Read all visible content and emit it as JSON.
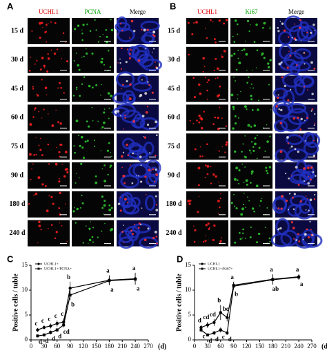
{
  "panel_a": {
    "label": "A",
    "headers": [
      "UCHL1",
      "PCNA",
      "Merge"
    ],
    "rows": [
      "15 d",
      "30 d",
      "45 d",
      "60 d",
      "75 d",
      "90 d",
      "180 d",
      "240 d"
    ]
  },
  "panel_b": {
    "label": "B",
    "headers": [
      "UCHL1",
      "Ki67",
      "Merge"
    ],
    "rows": [
      "15 d",
      "30 d",
      "45 d",
      "60 d",
      "75 d",
      "90 d",
      "180 d",
      "240 d"
    ]
  },
  "chart_data": [
    {
      "type": "line",
      "label": "C",
      "ylabel": "Positive cells / tuble",
      "xlabel": "(d)",
      "xlim": [
        0,
        270
      ],
      "xticks": [
        0,
        30,
        60,
        90,
        120,
        150,
        180,
        210,
        240,
        270
      ],
      "ylim": [
        0,
        15
      ],
      "yticks": [
        0,
        5,
        10,
        15
      ],
      "x": [
        15,
        30,
        45,
        60,
        75,
        90,
        180,
        240
      ],
      "series": [
        {
          "name": "UCHL1+",
          "color": "#000000",
          "marker": "circle",
          "values": [
            2.0,
            2.5,
            2.8,
            3.3,
            3.6,
            10.4,
            12.0,
            12.3
          ],
          "errors": [
            0.4,
            0.4,
            0.5,
            0.6,
            0.7,
            1.3,
            1.0,
            1.2
          ],
          "annotations": [
            "c",
            "c",
            "c",
            "c",
            "c",
            "b",
            "a",
            "a"
          ]
        },
        {
          "name": "UCHL1+/PCNA+",
          "color": "#000000",
          "marker": "square",
          "values": [
            0.8,
            1.0,
            1.5,
            2.0,
            3.0,
            9.0,
            11.9,
            12.2
          ],
          "errors": [
            0.3,
            0.3,
            0.4,
            0.4,
            0.5,
            1.0,
            0.9,
            1.0
          ],
          "annotations": [
            "d",
            "d",
            "d",
            "d",
            "cd",
            "b",
            "a",
            "a"
          ]
        }
      ]
    },
    {
      "type": "line",
      "label": "D",
      "ylabel": "Positive cells / tuble",
      "xlabel": "(d)",
      "xlim": [
        0,
        270
      ],
      "xticks": [
        0,
        30,
        60,
        90,
        120,
        150,
        180,
        210,
        240,
        270
      ],
      "ylim": [
        0,
        15
      ],
      "yticks": [
        0,
        5,
        10,
        15
      ],
      "x": [
        15,
        30,
        45,
        60,
        75,
        90,
        180,
        240
      ],
      "series": [
        {
          "name": "UCHL1",
          "color": "#000000",
          "marker": "circle",
          "values": [
            2.5,
            3.0,
            3.5,
            5.5,
            4.5,
            11.0,
            12.2,
            12.7
          ],
          "errors": [
            0.5,
            0.6,
            0.7,
            1.5,
            0.8,
            0.7,
            1.0,
            0.5
          ],
          "annotations": [
            "d",
            "cd",
            "cd",
            "b",
            "bc",
            "a",
            "a",
            "a"
          ]
        },
        {
          "name": "UCHL1+/Ki67+",
          "color": "#000000",
          "marker": "square",
          "values": [
            2.0,
            1.0,
            1.4,
            2.0,
            1.4,
            10.8,
            12.1,
            12.6
          ],
          "errors": [
            0.4,
            0.3,
            0.4,
            0.5,
            0.4,
            0.7,
            1.0,
            0.5
          ],
          "annotations": [
            "c",
            "d",
            "d",
            "c",
            "d",
            "b",
            "ab",
            "a"
          ]
        }
      ]
    }
  ]
}
